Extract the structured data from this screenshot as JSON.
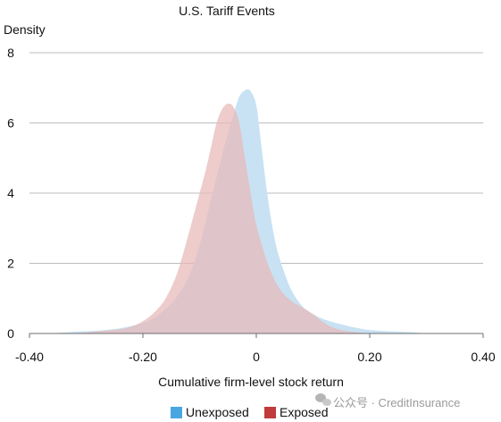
{
  "chart_data": {
    "type": "area",
    "title": "U.S. Tariff Events",
    "xlabel": "Cumulative firm-level stock return",
    "ylabel": "Density",
    "xlim": [
      -0.4,
      0.4
    ],
    "ylim": [
      0,
      8
    ],
    "x_ticks": [
      -0.4,
      -0.2,
      0,
      0.2,
      0.4
    ],
    "x_tick_labels": [
      "-0.40",
      "-0.20",
      "0",
      "0.20",
      "0.40"
    ],
    "y_ticks": [
      0,
      2,
      4,
      6,
      8
    ],
    "y_tick_labels": [
      "0",
      "2",
      "4",
      "6",
      "8"
    ],
    "grid": true,
    "legend_position": "bottom-center",
    "series": [
      {
        "name": "Unexposed",
        "color": "#4aa6e0",
        "fill": "#c8e2f4",
        "x": [
          -0.36,
          -0.32,
          -0.28,
          -0.24,
          -0.2,
          -0.18,
          -0.16,
          -0.14,
          -0.12,
          -0.1,
          -0.08,
          -0.06,
          -0.05,
          -0.04,
          -0.03,
          -0.02,
          -0.015,
          -0.01,
          0,
          0.01,
          0.02,
          0.03,
          0.04,
          0.06,
          0.08,
          0.1,
          0.12,
          0.14,
          0.16,
          0.18,
          0.2,
          0.24,
          0.28,
          0.3
        ],
        "y": [
          0,
          0.05,
          0.08,
          0.15,
          0.3,
          0.45,
          0.7,
          1.05,
          1.6,
          2.5,
          3.8,
          5.1,
          5.7,
          6.25,
          6.75,
          6.93,
          6.95,
          6.9,
          6.5,
          5.2,
          3.9,
          2.9,
          2.2,
          1.3,
          0.8,
          0.55,
          0.4,
          0.3,
          0.22,
          0.15,
          0.1,
          0.06,
          0.03,
          0
        ]
      },
      {
        "name": "Exposed",
        "color": "#c23b3b",
        "fill": "#e8b8b8",
        "x": [
          -0.32,
          -0.28,
          -0.24,
          -0.22,
          -0.2,
          -0.18,
          -0.16,
          -0.14,
          -0.12,
          -0.1,
          -0.09,
          -0.08,
          -0.07,
          -0.06,
          -0.05,
          -0.04,
          -0.03,
          -0.02,
          -0.01,
          0,
          0.02,
          0.04,
          0.06,
          0.08,
          0.1,
          0.12,
          0.14,
          0.16,
          0.18,
          0.2
        ],
        "y": [
          0,
          0.06,
          0.12,
          0.2,
          0.35,
          0.6,
          1.0,
          1.7,
          2.8,
          4.0,
          4.6,
          5.3,
          6.0,
          6.4,
          6.55,
          6.45,
          6.0,
          5.0,
          4.0,
          3.1,
          2.0,
          1.3,
          0.95,
          0.75,
          0.55,
          0.3,
          0.14,
          0.07,
          0.03,
          0
        ]
      }
    ]
  },
  "watermark": {
    "text": "公众号 · CreditInsurance"
  }
}
